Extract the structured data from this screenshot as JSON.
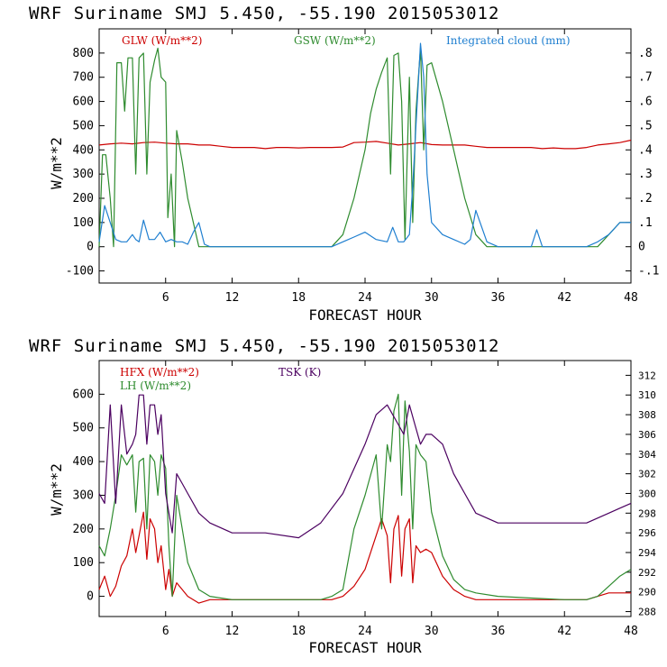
{
  "chart_data": [
    {
      "type": "line",
      "title": "WRF   Suriname SMJ   5.450, -55.190  2015053012",
      "xlabel": "FORECAST HOUR",
      "ylabel": "W/m**2",
      "xlim": [
        0,
        48
      ],
      "ylim": [
        -150,
        900
      ],
      "y2lim": [
        -0.15,
        0.9
      ],
      "x_ticks": [
        6,
        12,
        18,
        24,
        30,
        36,
        42,
        48
      ],
      "y_ticks": [
        -100,
        0,
        100,
        200,
        300,
        400,
        500,
        600,
        700,
        800
      ],
      "y2_ticks": [
        -0.1,
        0,
        0.1,
        0.2,
        0.3,
        0.4,
        0.5,
        0.6,
        0.7,
        0.8
      ],
      "y2_tick_labels": [
        "-.1",
        "0",
        ".1",
        ".2",
        ".3",
        ".4",
        ".5",
        ".6",
        ".7",
        ".8"
      ],
      "series": [
        {
          "name": "GLW (W/m**2)",
          "color": "#cc0000",
          "axis": "left",
          "x": [
            0,
            1,
            2,
            3,
            4,
            5,
            6,
            7,
            8,
            9,
            10,
            11,
            12,
            13,
            14,
            15,
            16,
            17,
            18,
            19,
            20,
            21,
            22,
            23,
            24,
            25,
            26,
            27,
            28,
            29,
            30,
            31,
            32,
            33,
            34,
            35,
            36,
            37,
            38,
            39,
            40,
            41,
            42,
            43,
            44,
            45,
            46,
            47,
            48
          ],
          "y": [
            420,
            425,
            428,
            425,
            430,
            432,
            428,
            425,
            425,
            420,
            420,
            415,
            410,
            410,
            410,
            405,
            410,
            410,
            408,
            410,
            410,
            410,
            412,
            430,
            432,
            435,
            428,
            420,
            425,
            430,
            422,
            420,
            420,
            420,
            415,
            410,
            410,
            410,
            410,
            410,
            405,
            408,
            405,
            405,
            410,
            420,
            425,
            430,
            440
          ]
        },
        {
          "name": "GSW (W/m**2)",
          "color": "#2e8b2e",
          "axis": "left",
          "x": [
            0,
            0.3,
            0.6,
            1,
            1.3,
            1.6,
            2,
            2.3,
            2.6,
            3,
            3.3,
            3.6,
            4,
            4.3,
            4.6,
            5,
            5.3,
            5.6,
            6,
            6.2,
            6.5,
            6.8,
            7,
            7.5,
            8,
            8.5,
            9,
            9.5,
            10,
            12,
            15,
            18,
            20,
            21,
            22,
            23,
            24,
            24.5,
            25,
            25.5,
            26,
            26.3,
            26.6,
            27,
            27.3,
            27.6,
            28,
            28.3,
            28.6,
            29,
            29.3,
            29.6,
            30,
            31,
            32,
            33,
            34,
            35,
            36,
            40,
            44,
            45,
            46,
            47,
            48
          ],
          "y": [
            0,
            380,
            380,
            200,
            0,
            760,
            760,
            560,
            780,
            780,
            300,
            780,
            800,
            300,
            680,
            770,
            820,
            700,
            680,
            120,
            300,
            0,
            480,
            350,
            200,
            100,
            0,
            0,
            0,
            0,
            0,
            0,
            0,
            0,
            50,
            200,
            400,
            550,
            650,
            720,
            780,
            300,
            790,
            800,
            600,
            30,
            700,
            100,
            560,
            820,
            400,
            750,
            760,
            600,
            400,
            200,
            50,
            0,
            0,
            0,
            0,
            0,
            50,
            100,
            100
          ]
        },
        {
          "name": "Integrated cloud (mm)",
          "color": "#1f7fd0",
          "axis": "right",
          "x": [
            0,
            0.5,
            1,
            1.5,
            2,
            2.5,
            3,
            3.3,
            3.6,
            4,
            4.5,
            5,
            5.5,
            6,
            6.5,
            7,
            7.5,
            8,
            8.5,
            9,
            9.5,
            10,
            12,
            18,
            21,
            22,
            23,
            24,
            25,
            26,
            26.5,
            27,
            27.5,
            28,
            28.3,
            28.6,
            29,
            29.3,
            29.6,
            30,
            31,
            32,
            33,
            33.5,
            34,
            35,
            36,
            38,
            39,
            39.5,
            40,
            42,
            44,
            45,
            46,
            47,
            48
          ],
          "y": [
            0.02,
            0.17,
            0.1,
            0.03,
            0.02,
            0.02,
            0.05,
            0.03,
            0.02,
            0.11,
            0.03,
            0.03,
            0.06,
            0.02,
            0.03,
            0.02,
            0.02,
            0.01,
            0.06,
            0.1,
            0.01,
            0.0,
            0.0,
            0.0,
            0.0,
            0.02,
            0.04,
            0.06,
            0.03,
            0.02,
            0.08,
            0.02,
            0.02,
            0.05,
            0.25,
            0.5,
            0.84,
            0.7,
            0.3,
            0.1,
            0.05,
            0.03,
            0.01,
            0.03,
            0.15,
            0.02,
            0.0,
            0.0,
            0.0,
            0.07,
            0.0,
            0.0,
            0.0,
            0.02,
            0.05,
            0.1,
            0.1
          ]
        }
      ],
      "legend": [
        {
          "label": "GLW (W/m**2)",
          "color": "#cc0000"
        },
        {
          "label": "GSW (W/m**2)",
          "color": "#2e8b2e"
        },
        {
          "label": "Integrated cloud (mm)",
          "color": "#1f7fd0"
        }
      ]
    },
    {
      "type": "line",
      "title": "WRF   Suriname SMJ   5.450, -55.190  2015053012",
      "xlabel": "FORECAST HOUR",
      "ylabel": "W/m**2",
      "xlim": [
        0,
        48
      ],
      "ylim": [
        -60,
        700
      ],
      "y2lim": [
        287.5,
        313.5
      ],
      "x_ticks": [
        6,
        12,
        18,
        24,
        30,
        36,
        42,
        48
      ],
      "y_ticks": [
        0,
        100,
        200,
        300,
        400,
        500,
        600
      ],
      "y2_ticks": [
        288,
        290,
        292,
        294,
        296,
        298,
        300,
        302,
        304,
        306,
        308,
        310,
        312
      ],
      "y2_tick_labels": [
        "288",
        "290",
        "292",
        "294",
        "296",
        "298",
        "300",
        "302",
        "304",
        "306",
        "308",
        "310",
        "312"
      ],
      "series": [
        {
          "name": "HFX (W/m**2)",
          "color": "#cc0000",
          "axis": "left",
          "x": [
            0,
            0.5,
            1,
            1.5,
            2,
            2.5,
            3,
            3.3,
            3.6,
            4,
            4.3,
            4.6,
            5,
            5.3,
            5.6,
            6,
            6.3,
            6.6,
            7,
            7.5,
            8,
            9,
            10,
            12,
            18,
            21,
            22,
            23,
            24,
            25,
            25.5,
            26,
            26.3,
            26.6,
            27,
            27.3,
            27.6,
            28,
            28.3,
            28.6,
            29,
            29.5,
            30,
            31,
            32,
            33,
            34,
            36,
            42,
            44,
            45,
            46,
            47,
            48
          ],
          "y": [
            20,
            60,
            0,
            30,
            90,
            120,
            200,
            130,
            180,
            250,
            110,
            230,
            200,
            100,
            150,
            20,
            80,
            0,
            40,
            20,
            0,
            -20,
            -10,
            -10,
            -10,
            -10,
            0,
            30,
            80,
            180,
            230,
            180,
            40,
            200,
            240,
            60,
            200,
            230,
            40,
            150,
            130,
            140,
            130,
            60,
            20,
            0,
            -10,
            -10,
            -10,
            -10,
            0,
            10,
            10,
            10
          ]
        },
        {
          "name": "LH (W/m**2)",
          "color": "#2e8b2e",
          "axis": "left",
          "x": [
            0,
            0.5,
            1,
            1.5,
            2,
            2.5,
            3,
            3.3,
            3.6,
            4,
            4.3,
            4.6,
            5,
            5.3,
            5.6,
            6,
            6.3,
            6.6,
            7,
            7.5,
            8,
            9,
            10,
            12,
            18,
            20,
            21,
            22,
            23,
            24,
            25,
            25.5,
            26,
            26.3,
            26.6,
            27,
            27.3,
            27.6,
            28,
            28.3,
            28.6,
            29,
            29.5,
            30,
            31,
            32,
            33,
            34,
            36,
            42,
            44,
            45,
            46,
            47,
            48
          ],
          "y": [
            150,
            120,
            200,
            300,
            420,
            390,
            420,
            250,
            400,
            410,
            200,
            420,
            400,
            300,
            420,
            380,
            150,
            0,
            300,
            200,
            100,
            20,
            0,
            -10,
            -10,
            -10,
            0,
            20,
            200,
            300,
            420,
            200,
            450,
            400,
            550,
            600,
            300,
            580,
            430,
            200,
            450,
            420,
            400,
            250,
            120,
            50,
            20,
            10,
            0,
            -10,
            -10,
            0,
            30,
            60,
            80
          ]
        },
        {
          "name": "TSK (K)",
          "color": "#4b0060",
          "axis": "right",
          "x": [
            0,
            0.5,
            1,
            1.5,
            2,
            2.5,
            3,
            3.3,
            3.6,
            4,
            4.3,
            4.6,
            5,
            5.3,
            5.6,
            6,
            6.3,
            6.6,
            7,
            7.5,
            8,
            9,
            10,
            12,
            15,
            18,
            20,
            22,
            24,
            25,
            26,
            26.5,
            27,
            27.5,
            28,
            28.5,
            29,
            29.5,
            30,
            31,
            32,
            33,
            34,
            36,
            40,
            44,
            46,
            47,
            48
          ],
          "y": [
            300,
            299,
            309,
            299,
            309,
            304,
            305,
            306,
            310,
            310,
            305,
            309,
            309,
            306,
            308,
            300,
            298,
            296,
            302,
            301,
            300,
            298,
            297,
            296,
            296,
            295.5,
            297,
            300,
            305,
            308,
            309,
            308,
            307,
            306,
            309,
            307,
            305,
            306,
            306,
            305,
            302,
            300,
            298,
            297,
            297,
            297,
            298,
            298.5,
            299
          ]
        }
      ],
      "legend": [
        {
          "label": "HFX (W/m**2)",
          "color": "#cc0000"
        },
        {
          "label": "LH (W/m**2)",
          "color": "#2e8b2e"
        },
        {
          "label": "TSK (K)",
          "color": "#4b0060"
        }
      ]
    }
  ]
}
